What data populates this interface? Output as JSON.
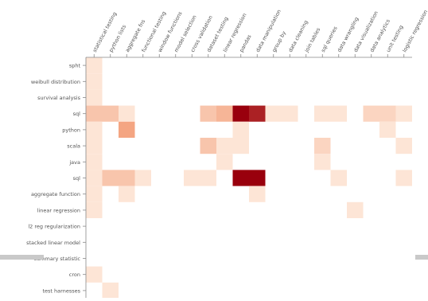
{
  "chart_data": {
    "type": "heatmap",
    "title": "",
    "xlabel": "",
    "ylabel": "",
    "color_scale": {
      "low": "#fff5eb",
      "mid": "#f4a582",
      "high": "#99000d"
    },
    "value_range": [
      0,
      10
    ],
    "grid": false,
    "legend": "none",
    "x_categories": [
      "statistical testing",
      "python lists",
      "aggregate fns",
      "functional testing",
      "window functions",
      "model selection",
      "cross validation",
      "dataset testing",
      "linear regression",
      "pandas",
      "data manipulation",
      "group by",
      "data cleaning",
      "join tables",
      "sql queries",
      "data wrangling",
      "data visualization",
      "data analytics",
      "unit testing",
      "logistic regression"
    ],
    "y_categories": [
      "spht",
      "weibull distribution",
      "survival analysis",
      "sql",
      "python",
      "scala",
      "java",
      "sql",
      "aggregate function",
      "linear regression",
      "l2 reg regularization",
      "stacked linear model",
      "summary statistic",
      "cron",
      "test harnesses"
    ],
    "values": [
      [
        1,
        0,
        0,
        0,
        0,
        0,
        0,
        0,
        0,
        0,
        0,
        0,
        0,
        0,
        0,
        0,
        0,
        0,
        0,
        0
      ],
      [
        1,
        0,
        0,
        0,
        0,
        0,
        0,
        0,
        0,
        0,
        0,
        0,
        0,
        0,
        0,
        0,
        0,
        0,
        0,
        0
      ],
      [
        1,
        0,
        0,
        0,
        0,
        0,
        0,
        0,
        0,
        0,
        0,
        0,
        0,
        0,
        0,
        0,
        0,
        0,
        0,
        0
      ],
      [
        3,
        3,
        1,
        0,
        0,
        0,
        0,
        3,
        4,
        10,
        9,
        1,
        1,
        0,
        1,
        1,
        0,
        2,
        2,
        1
      ],
      [
        1,
        0,
        5,
        0,
        0,
        0,
        0,
        0,
        0,
        1,
        0,
        0,
        0,
        0,
        0,
        0,
        0,
        0,
        1,
        0
      ],
      [
        1,
        0,
        0,
        0,
        0,
        0,
        0,
        3,
        1,
        1,
        0,
        0,
        0,
        0,
        2,
        0,
        0,
        0,
        0,
        1
      ],
      [
        1,
        0,
        0,
        0,
        0,
        0,
        0,
        0,
        1,
        0,
        0,
        0,
        0,
        0,
        1,
        0,
        0,
        0,
        0,
        0
      ],
      [
        1,
        3,
        3,
        1,
        0,
        0,
        1,
        1,
        0,
        10,
        10,
        0,
        0,
        0,
        0,
        1,
        0,
        0,
        0,
        1
      ],
      [
        1,
        0,
        1,
        0,
        0,
        0,
        0,
        0,
        0,
        0,
        1,
        0,
        0,
        0,
        0,
        0,
        0,
        0,
        0,
        0
      ],
      [
        1,
        0,
        0,
        0,
        0,
        0,
        0,
        0,
        0,
        0,
        0,
        0,
        0,
        0,
        0,
        0,
        1,
        0,
        0,
        0
      ],
      [
        0,
        0,
        0,
        0,
        0,
        0,
        0,
        0,
        0,
        0,
        0,
        0,
        0,
        0,
        0,
        0,
        0,
        0,
        0,
        0
      ],
      [
        0,
        0,
        0,
        0,
        0,
        0,
        0,
        0,
        0,
        0,
        0,
        0,
        0,
        0,
        0,
        0,
        0,
        0,
        0,
        0
      ],
      [
        0,
        0,
        0,
        0,
        0,
        0,
        0,
        0,
        0,
        0,
        0,
        0,
        0,
        0,
        0,
        0,
        0,
        0,
        0,
        0
      ],
      [
        1,
        0,
        0,
        0,
        0,
        0,
        0,
        0,
        0,
        0,
        0,
        0,
        0,
        0,
        0,
        0,
        0,
        0,
        0,
        0
      ],
      [
        0,
        1,
        0,
        0,
        0,
        0,
        0,
        0,
        0,
        0,
        0,
        0,
        0,
        0,
        0,
        0,
        0,
        0,
        0,
        0
      ]
    ]
  }
}
